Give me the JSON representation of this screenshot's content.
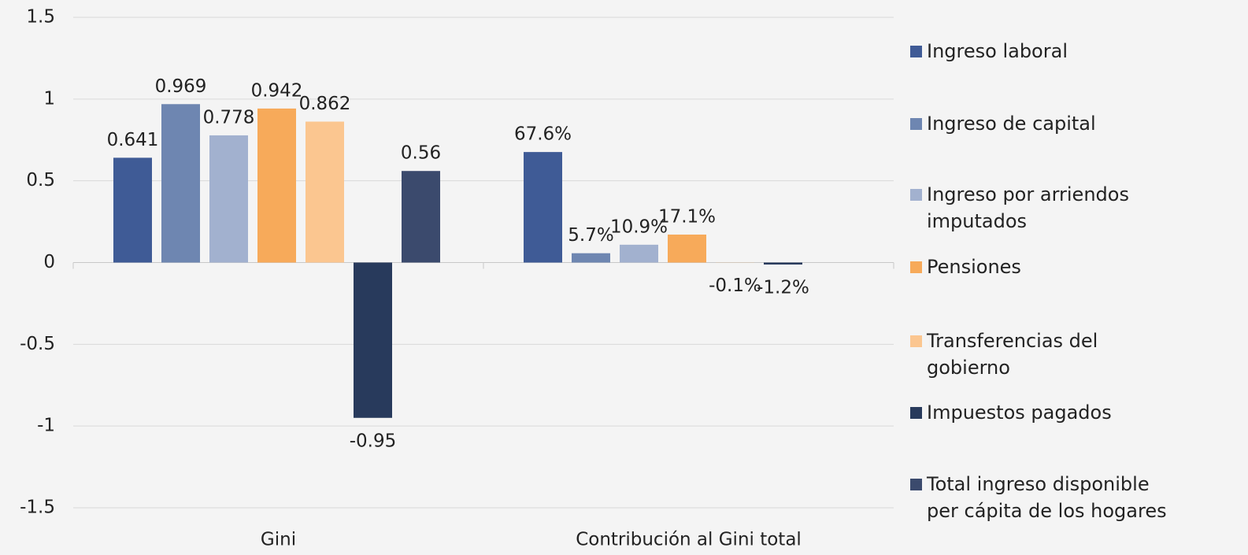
{
  "chart_data": {
    "type": "bar",
    "categories": [
      "Gini",
      "Contribución al Gini total"
    ],
    "ylim": [
      -1.5,
      1.5
    ],
    "yticks": [
      -1.5,
      -1,
      -0.5,
      0,
      0.5,
      1,
      1.5
    ],
    "grid": true,
    "legend": "right",
    "series": [
      {
        "name": "Ingreso laboral",
        "color": "#3f5b96",
        "values": [
          0.641,
          0.676
        ],
        "value_labels": [
          "0.641",
          "67.6%"
        ]
      },
      {
        "name": "Ingreso de capital",
        "color": "#6e86b1",
        "values": [
          0.969,
          0.057
        ],
        "value_labels": [
          "0.969",
          "5.7%"
        ]
      },
      {
        "name": "Ingreso por arriendos imputados",
        "color": "#a2b1cf",
        "values": [
          0.778,
          0.109
        ],
        "value_labels": [
          "0.778",
          "10.9%"
        ]
      },
      {
        "name": "Pensiones",
        "color": "#f7aa5a",
        "values": [
          0.942,
          0.171
        ],
        "value_labels": [
          "0.942",
          "17.1%"
        ]
      },
      {
        "name": "Transferencias del gobierno",
        "color": "#fbc690",
        "values": [
          0.862,
          -0.001
        ],
        "value_labels": [
          "0.862",
          "-0.1%"
        ]
      },
      {
        "name": "Impuestos pagados",
        "color": "#283a5c",
        "values": [
          -0.95,
          -0.012
        ],
        "value_labels": [
          "-0.95",
          "-1.2%"
        ]
      },
      {
        "name": "Total ingreso disponible per cápita de los hogares",
        "color": "#3b4a6d",
        "values": [
          0.56,
          null
        ],
        "value_labels": [
          "0.56",
          null
        ]
      }
    ]
  }
}
